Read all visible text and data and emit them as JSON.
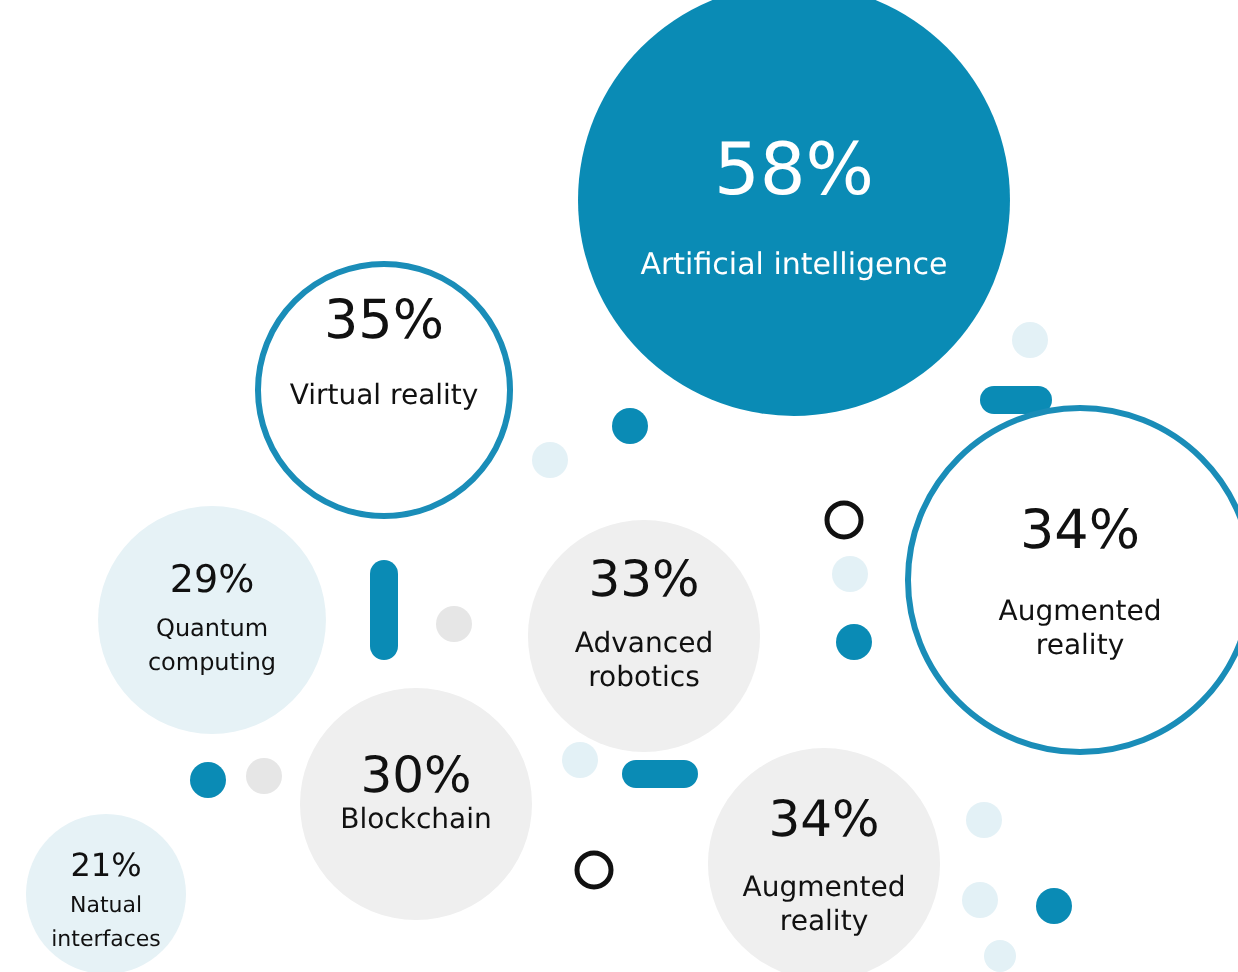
{
  "chart_data": {
    "type": "other",
    "categories": [
      "Artificial intelligence",
      "Virtual reality",
      "Augmented reality",
      "Quantum computing",
      "Advanced robotics",
      "Blockchain",
      "Augmented reality",
      "Natual interfaces"
    ],
    "values": [
      58,
      35,
      34,
      29,
      33,
      30,
      34,
      21
    ],
    "value_labels": [
      "58%",
      "35%",
      "34%",
      "29%",
      "33%",
      "30%",
      "34%",
      "21%"
    ],
    "colors": [
      "#0a8bb5",
      "#ffffff",
      "#ffffff",
      "#e6f2f6",
      "#efefef",
      "#efefef",
      "#efefef",
      "#e6f2f6"
    ]
  }
}
